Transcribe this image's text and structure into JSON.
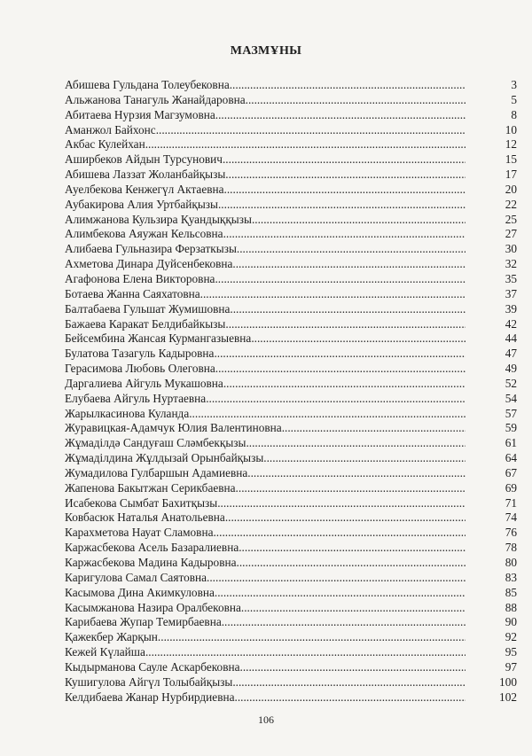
{
  "title": "МАЗМҰНЫ",
  "entries": [
    {
      "name": "Абишева Гульдана Толеубековна",
      "page": "3"
    },
    {
      "name": "Альжанова Танагуль Жанайдаровна",
      "page": "5"
    },
    {
      "name": "Абитаева Нурзия Магзумовна",
      "page": "8"
    },
    {
      "name": "Аманжол Байхонс",
      "page": "10"
    },
    {
      "name": "Акбас Кулейхан",
      "page": "12"
    },
    {
      "name": "Аширбеков Айдын Турсунович",
      "page": "15"
    },
    {
      "name": "Абишева Лаззат Жоланбайқызы",
      "page": "17"
    },
    {
      "name": "Ауелбекова Кенжегүл Актаевна",
      "page": "20"
    },
    {
      "name": "Аубакирова Алия Уртбайқызы",
      "page": "22"
    },
    {
      "name": "Алимжанова Кульзира Қуандыққызы",
      "page": "25"
    },
    {
      "name": "Алимбекова Аяужан Кельсовна",
      "page": "27"
    },
    {
      "name": "Алибаева Гульназира Ферзаткызы",
      "page": "30"
    },
    {
      "name": "Ахметова Динара Дуйсенбековна ",
      "page": "32"
    },
    {
      "name": "Агафонова Елена Викторовна",
      "page": "35"
    },
    {
      "name": "Ботаева Жанна Саяхатовна",
      "page": "37"
    },
    {
      "name": "Балтабаева Гульшат Жумишовна",
      "page": "39"
    },
    {
      "name": "Бажаева  Каракат Белдибайкызы",
      "page": "42"
    },
    {
      "name": "Бейсембина Жансая Курмангазыевна",
      "page": "44"
    },
    {
      "name": "Булатова Тазагуль Кадыровна",
      "page": "47"
    },
    {
      "name": "Герасимова Любовь Олеговна",
      "page": "49"
    },
    {
      "name": "Даргалиева Айгуль Мукашовна",
      "page": "52"
    },
    {
      "name": "Елубаева Айгуль Нуртаевна",
      "page": "54"
    },
    {
      "name": "Жарылкасинова Куланда",
      "page": "57"
    },
    {
      "name": "Журавицкая-Адамчук Юлия Валентиновна",
      "page": "59"
    },
    {
      "name": "Жұмаділдә Сандуғаш Сләмбекқызы",
      "page": "61"
    },
    {
      "name": "Жұмаділдина Жұлдызай Орынбайқызы",
      "page": "64"
    },
    {
      "name": "Жумадилова Гулбаршын Адамиевна",
      "page": "67"
    },
    {
      "name": "Жапенова Бакытжан Серикбаевна",
      "page": "69"
    },
    {
      "name": "Исабекова Сымбат Бахитқызы",
      "page": "71"
    },
    {
      "name": "Ковбасюк Наталья Анатольевна",
      "page": "74"
    },
    {
      "name": "Карахметова Науат Сламовна",
      "page": "76"
    },
    {
      "name": "Каржасбекова Асель Базаралиевна",
      "page": "78"
    },
    {
      "name": "Каржасбекова Мадина Кадыровна",
      "page": "80"
    },
    {
      "name": "Каригулова Самал Саятовна",
      "page": "83"
    },
    {
      "name": "Касымова Дина Акимкуловна",
      "page": "85"
    },
    {
      "name": "Касымжанова Назира Оралбековна",
      "page": "88"
    },
    {
      "name": "Карибаева Жупар Темирбаевна",
      "page": "90"
    },
    {
      "name": "Қажекбер Жарқын",
      "page": "92"
    },
    {
      "name": "Кежей Күлайша ",
      "page": "95"
    },
    {
      "name": "Кыдырманова Сауле Аскарбековна",
      "page": "97"
    },
    {
      "name": "Кушигулова Айгүл Толыбайқызы",
      "page": "100"
    },
    {
      "name": "Келдибаева Жанар Нурбирдиевна",
      "page": "102"
    }
  ],
  "page_number": "106"
}
